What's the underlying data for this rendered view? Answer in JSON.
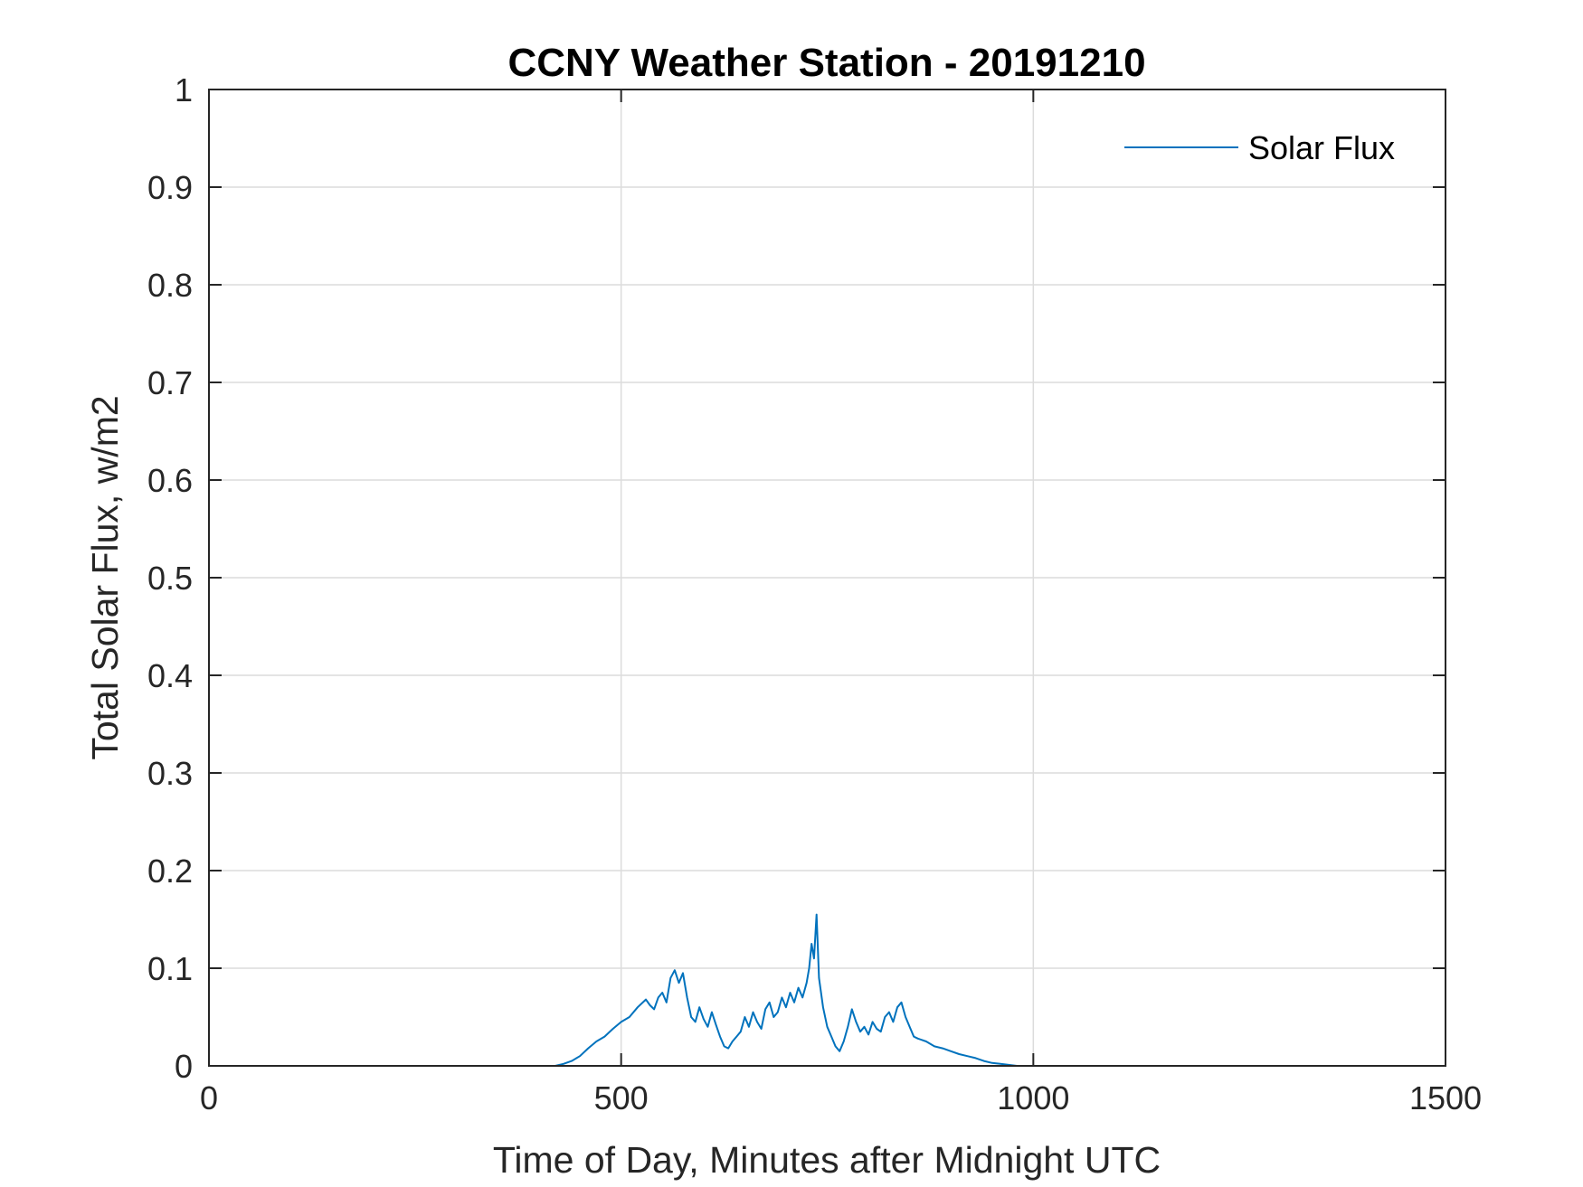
{
  "chart_data": {
    "type": "line",
    "title": "CCNY Weather Station - 20191210",
    "xlabel": "Time of Day, Minutes after Midnight UTC",
    "ylabel": "Total Solar Flux, w/m2",
    "xlim": [
      0,
      1500
    ],
    "ylim": [
      0,
      1
    ],
    "grid": true,
    "legend_position": "top-right",
    "x_ticks": [
      0,
      500,
      1000,
      1500
    ],
    "x_tick_labels": [
      "0",
      "500",
      "1000",
      "1500"
    ],
    "y_ticks": [
      0,
      0.1,
      0.2,
      0.3,
      0.4,
      0.5,
      0.6,
      0.7,
      0.8,
      0.9,
      1
    ],
    "y_tick_labels": [
      "0",
      "0.1",
      "0.2",
      "0.3",
      "0.4",
      "0.5",
      "0.6",
      "0.7",
      "0.8",
      "0.9",
      "1"
    ],
    "series": [
      {
        "name": "Solar Flux",
        "color": "#0072BD",
        "x": [
          0,
          420,
          430,
          440,
          450,
          460,
          470,
          480,
          490,
          500,
          510,
          520,
          530,
          535,
          540,
          545,
          550,
          555,
          560,
          565,
          570,
          575,
          580,
          585,
          590,
          595,
          600,
          605,
          610,
          615,
          620,
          625,
          630,
          635,
          640,
          645,
          650,
          655,
          660,
          665,
          670,
          675,
          680,
          685,
          690,
          695,
          700,
          705,
          710,
          715,
          720,
          725,
          728,
          731,
          734,
          737,
          740,
          745,
          750,
          755,
          760,
          765,
          770,
          775,
          780,
          785,
          790,
          795,
          800,
          805,
          810,
          815,
          820,
          825,
          830,
          835,
          840,
          845,
          850,
          855,
          860,
          870,
          880,
          890,
          900,
          910,
          920,
          930,
          940,
          950,
          960,
          970,
          980,
          1000,
          1440
        ],
        "values": [
          0,
          0,
          0.002,
          0.005,
          0.01,
          0.018,
          0.025,
          0.03,
          0.038,
          0.045,
          0.05,
          0.06,
          0.068,
          0.062,
          0.058,
          0.07,
          0.075,
          0.065,
          0.09,
          0.098,
          0.085,
          0.095,
          0.07,
          0.05,
          0.045,
          0.06,
          0.048,
          0.04,
          0.055,
          0.042,
          0.03,
          0.02,
          0.018,
          0.025,
          0.03,
          0.035,
          0.05,
          0.04,
          0.055,
          0.045,
          0.038,
          0.058,
          0.065,
          0.05,
          0.055,
          0.07,
          0.06,
          0.075,
          0.065,
          0.08,
          0.07,
          0.085,
          0.1,
          0.125,
          0.11,
          0.155,
          0.09,
          0.06,
          0.04,
          0.03,
          0.02,
          0.015,
          0.025,
          0.04,
          0.058,
          0.045,
          0.035,
          0.04,
          0.032,
          0.045,
          0.038,
          0.035,
          0.05,
          0.055,
          0.045,
          0.06,
          0.065,
          0.05,
          0.04,
          0.03,
          0.028,
          0.025,
          0.02,
          0.018,
          0.015,
          0.012,
          0.01,
          0.008,
          0.005,
          0.003,
          0.002,
          0.001,
          0,
          0,
          0
        ]
      }
    ]
  }
}
